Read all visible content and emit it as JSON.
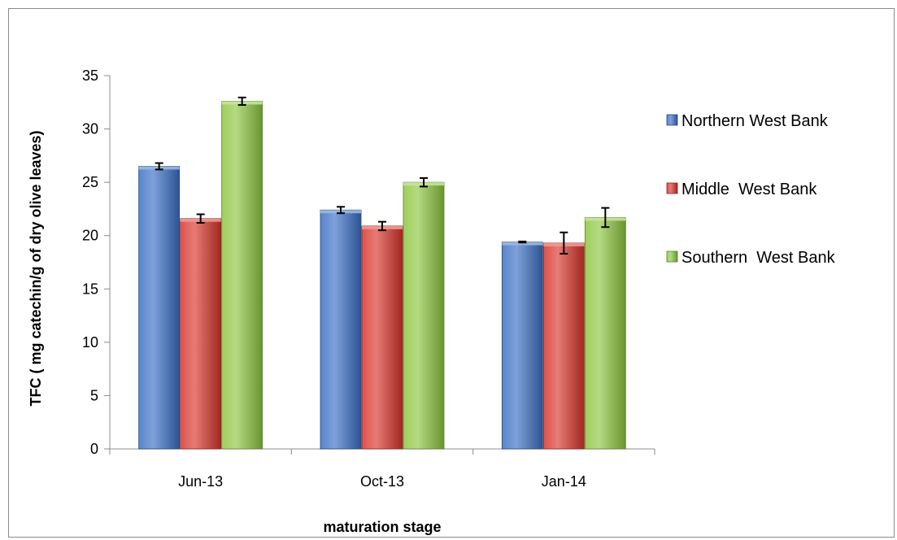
{
  "chart_data": {
    "type": "bar",
    "title": "",
    "xlabel": "maturation stage",
    "ylabel": "TFC ( mg catechin/g of dry olive leaves)",
    "ylim": [
      0,
      35
    ],
    "yticks": [
      0,
      5,
      10,
      15,
      20,
      25,
      30,
      35
    ],
    "categories": [
      "Jun-13",
      "Oct-13",
      "Jan-14"
    ],
    "series": [
      {
        "name": "Northern West Bank",
        "values": [
          26.5,
          22.4,
          19.4
        ],
        "errors": [
          0.3,
          0.3,
          0.05
        ],
        "color": "#3a6fc4"
      },
      {
        "name": "Middle  West Bank",
        "values": [
          21.6,
          20.9,
          19.3
        ],
        "errors": [
          0.4,
          0.4,
          1.0
        ],
        "color": "#d9342b"
      },
      {
        "name": "Southern  West Bank",
        "values": [
          32.6,
          25.0,
          21.7
        ],
        "errors": [
          0.35,
          0.4,
          0.9
        ],
        "color": "#8dc63f"
      }
    ],
    "grid": false,
    "legend_position": "right"
  }
}
